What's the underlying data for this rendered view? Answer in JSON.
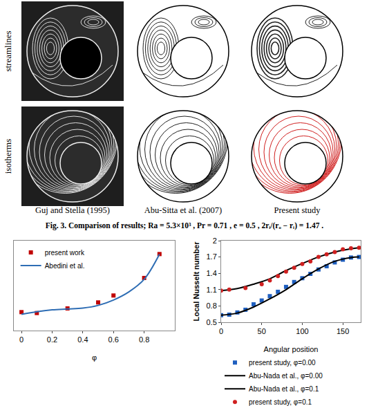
{
  "figure": {
    "row_labels": [
      "streamlines",
      "isotherms"
    ],
    "column_labels": [
      "Guj and Stella (1995)",
      "Abu-Sitta et al. (2007)",
      "Present study"
    ],
    "caption": "Fig. 3. Comparison of results;  Ra = 5.3×10³ , Pr = 0.71 , e = 0.5 , 2rᵢ/(rₒ − rᵢ) = 1.47 ."
  },
  "chart_data": [
    {
      "type": "line",
      "x_label": "φ",
      "xlim": [
        -0.05,
        1.0
      ],
      "xticks": [
        0,
        0.2,
        0.4,
        0.6,
        0.8
      ],
      "ylim": [
        0,
        10
      ],
      "tick_labels": "x",
      "grid": false,
      "legend": "upper left",
      "series": [
        {
          "name": "present work",
          "type": "scatter",
          "marker": "square",
          "color": "#c00000",
          "x": [
            0,
            0.1,
            0.3,
            0.5,
            0.6,
            0.8,
            0.9
          ],
          "values": [
            2.05,
            1.95,
            2.46,
            3.13,
            3.9,
            5.85,
            8.51
          ]
        },
        {
          "name": "Abedini et al.",
          "type": "line",
          "line_style": "solid",
          "color": "#2e6db4",
          "x": [
            0,
            0.1,
            0.2,
            0.3,
            0.4,
            0.5,
            0.6,
            0.7,
            0.8,
            0.9
          ],
          "values": [
            1.8,
            2.1,
            2.3,
            2.4,
            2.5,
            2.8,
            3.4,
            4.3,
            5.7,
            8.5
          ]
        }
      ]
    },
    {
      "type": "line",
      "x_label": "Angular position",
      "y_label": "Local Nusselt number",
      "xlim": [
        0,
        172
      ],
      "xticks": [
        0,
        50,
        100,
        150
      ],
      "ylim": [
        0.5,
        2
      ],
      "yticks": [
        0.5,
        0.8,
        1.1,
        1.4,
        1.7,
        2
      ],
      "grid": false,
      "legend": "below",
      "series": [
        {
          "name": "present study, φ=0.00",
          "type": "scatter",
          "marker": "square",
          "color": "#1f5fbf",
          "x": [
            0,
            10,
            20,
            30,
            40,
            50,
            60,
            70,
            80,
            90,
            100,
            110,
            120,
            130,
            140,
            150,
            160,
            170
          ],
          "values": [
            0.63,
            0.64,
            0.68,
            0.73,
            0.83,
            0.9,
            0.98,
            1.06,
            1.15,
            1.24,
            1.31,
            1.39,
            1.47,
            1.53,
            1.6,
            1.65,
            1.69,
            1.7
          ]
        },
        {
          "name": "Abu-Nada et al., φ=0.00",
          "type": "line",
          "line_style": "solid",
          "color": "#000000",
          "x": [
            0,
            20,
            40,
            60,
            80,
            100,
            120,
            140,
            160,
            170
          ],
          "values": [
            0.63,
            0.67,
            0.78,
            0.93,
            1.1,
            1.3,
            1.48,
            1.62,
            1.69,
            1.7
          ]
        },
        {
          "name": "Abu-Nada et al., φ=0.1",
          "type": "line",
          "line_style": "solid",
          "color": "#000000",
          "x": [
            0,
            20,
            40,
            60,
            80,
            100,
            120,
            140,
            160,
            170
          ],
          "values": [
            1.08,
            1.12,
            1.2,
            1.3,
            1.45,
            1.58,
            1.7,
            1.79,
            1.85,
            1.87
          ]
        },
        {
          "name": "present study, φ=0.1",
          "type": "scatter",
          "marker": "circle",
          "color": "#d02020",
          "x": [
            0,
            10,
            30,
            50,
            60,
            70,
            80,
            90,
            100,
            110,
            120,
            130,
            140,
            150,
            160,
            170
          ],
          "values": [
            1.08,
            1.1,
            1.13,
            1.2,
            1.27,
            1.35,
            1.43,
            1.5,
            1.57,
            1.62,
            1.7,
            1.75,
            1.79,
            1.84,
            1.86,
            1.87
          ]
        }
      ]
    }
  ]
}
